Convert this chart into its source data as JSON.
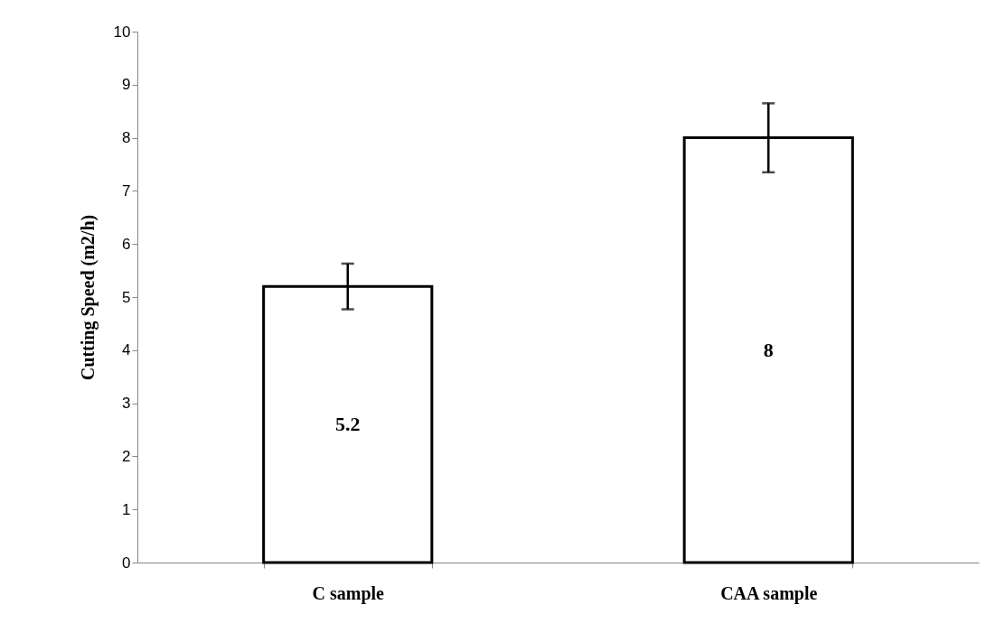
{
  "chart_data": {
    "type": "bar",
    "ylabel": "Cutting Speed (m2/h)",
    "categories": [
      "C sample",
      "CAA sample"
    ],
    "values": [
      5.2,
      8
    ],
    "errors": [
      0.43,
      0.65
    ],
    "color": "#ffffff",
    "ylim": [
      0,
      10
    ],
    "yticks": [
      0,
      1,
      2,
      3,
      4,
      5,
      6,
      7,
      8,
      9,
      10
    ],
    "data_labels": true,
    "grid": false
  }
}
